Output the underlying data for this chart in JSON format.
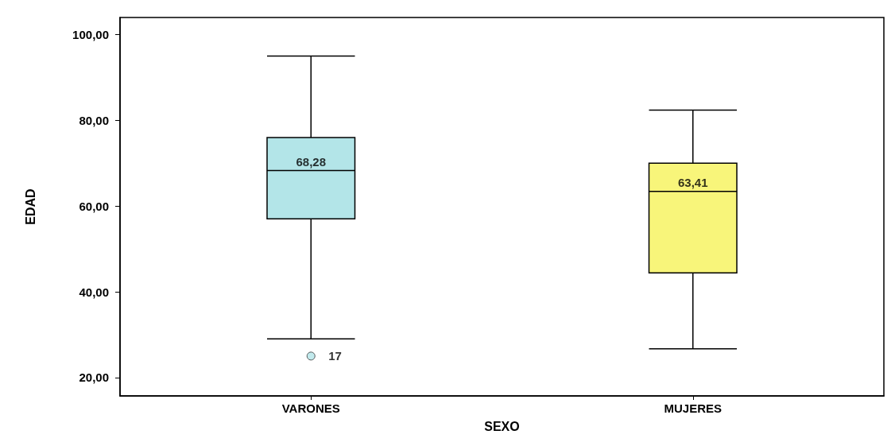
{
  "chart_data": {
    "type": "box",
    "categories": [
      "VARONES",
      "MUJERES"
    ],
    "xlabel": "SEXO",
    "ylabel": "EDAD",
    "boxes": [
      {
        "low": 29,
        "q1": 57,
        "median": 68.28,
        "q3": 76,
        "high": 95,
        "outliers": [
          25
        ]
      },
      {
        "low": 26.7,
        "q1": 44.4,
        "median": 63.41,
        "q3": 70,
        "high": 82.4
      }
    ],
    "colors": [
      "#b3e5e8",
      "#f8f57a"
    ],
    "value_labels": [
      "68,28",
      "63,41"
    ],
    "annotations": [
      "17"
    ],
    "ylim": [
      15.7,
      104
    ],
    "yticks": [
      {
        "value": 20,
        "label": "20,00"
      },
      {
        "value": 40,
        "label": "40,00"
      },
      {
        "value": 60,
        "label": "60,00"
      },
      {
        "value": 80,
        "label": "80,00"
      },
      {
        "value": 100,
        "label": "100,00"
      }
    ]
  }
}
